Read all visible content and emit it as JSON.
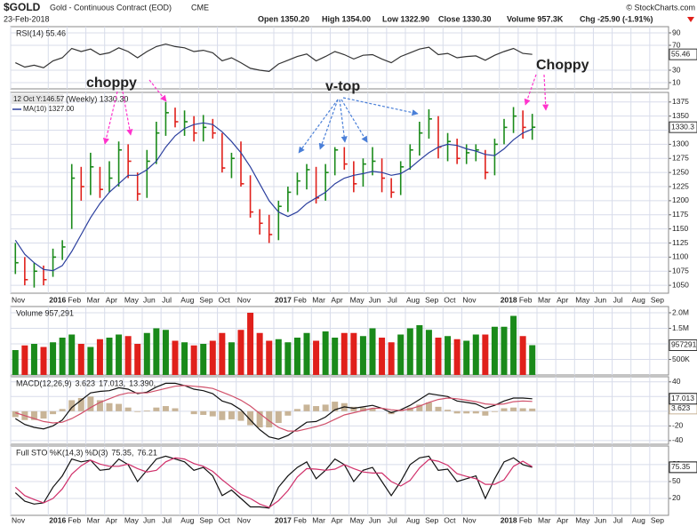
{
  "header": {
    "symbol": "$GOLD",
    "name": "Gold - Continuous Contract (EOD)",
    "exchange": "CME",
    "date": "23-Feb-2018",
    "source": "© StockCharts.com",
    "open": "Open 1350.20",
    "high": "High 1354.00",
    "low": "Low 1322.90",
    "close": "Close 1330.30",
    "volume": "Volume 957.3K",
    "change": "Chg -25.90 (-1.91%)"
  },
  "annotations": {
    "left": "choppy",
    "middle": "v-top",
    "right": "Choppy"
  },
  "chart_data": [
    {
      "type": "line",
      "title": "RSI(14) 55.46",
      "ylim": [
        0,
        100
      ],
      "yticks": [
        10,
        30,
        70,
        90
      ],
      "series": [
        {
          "color": "#333333",
          "last_label": "55.46",
          "values": [
            42,
            35,
            38,
            34,
            45,
            50,
            65,
            60,
            64,
            55,
            58,
            66,
            60,
            50,
            60,
            68,
            72,
            68,
            66,
            60,
            62,
            58,
            45,
            50,
            42,
            33,
            30,
            28,
            40,
            46,
            52,
            56,
            45,
            52,
            60,
            55,
            48,
            54,
            55,
            48,
            42,
            52,
            58,
            64,
            67,
            55,
            57,
            50,
            52,
            53,
            46,
            54,
            60,
            65,
            57,
            55.46,
            null,
            null,
            null,
            null,
            null,
            null,
            null,
            null,
            null,
            null,
            null,
            null,
            null,
            null
          ]
        }
      ]
    },
    {
      "type": "ohlc",
      "title": "(Weekly) 1330.30",
      "cursor_label": "12 Oct Y:146.57",
      "last_label": "1330.3",
      "up_color": "#1a8a1a",
      "down_color": "#e0201b",
      "ylim": [
        1036,
        1392
      ],
      "yticks": [
        1050,
        1075,
        1100,
        1125,
        1150,
        1175,
        1200,
        1225,
        1250,
        1275,
        1300,
        1325,
        1350,
        1375
      ],
      "categories": [
        "Nov",
        null,
        null,
        null,
        "2016",
        null,
        "Feb",
        null,
        "Mar",
        null,
        "Apr",
        null,
        "May",
        null,
        "Jun",
        null,
        "Jul",
        null,
        "Aug",
        null,
        "Sep",
        null,
        "Oct",
        null,
        "Nov",
        null,
        null,
        null,
        "2017",
        null,
        "Feb",
        null,
        "Mar",
        null,
        "Apr",
        null,
        "May",
        null,
        "Jun",
        null,
        "Jul",
        null,
        "Aug",
        null,
        "Sep",
        null,
        "Oct",
        null,
        "Nov",
        null,
        null,
        null,
        "2018",
        null,
        "Feb",
        null,
        "Mar",
        null,
        "Apr",
        null,
        "May",
        null,
        "Jun",
        null,
        "Jul",
        null,
        "Aug",
        null,
        "Sep",
        null
      ],
      "high": [
        1125,
        1100,
        1090,
        1085,
        1115,
        1130,
        1265,
        1260,
        1285,
        1260,
        1270,
        1305,
        1300,
        1250,
        1290,
        1340,
        1375,
        1365,
        1360,
        1350,
        1352,
        1345,
        1320,
        1285,
        1305,
        1245,
        1185,
        1175,
        1200,
        1225,
        1250,
        1265,
        1260,
        1265,
        1295,
        1295,
        1270,
        1275,
        1295,
        1275,
        1240,
        1270,
        1300,
        1340,
        1362,
        1350,
        1320,
        1310,
        1300,
        1300,
        1290,
        1310,
        1345,
        1366,
        1360,
        1354,
        null,
        null,
        null,
        null,
        null,
        null,
        null,
        null,
        null,
        null,
        null,
        null,
        null,
        null
      ],
      "low": [
        1070,
        1050,
        1046,
        1050,
        1065,
        1095,
        1150,
        1200,
        1210,
        1205,
        1215,
        1225,
        1240,
        1200,
        1205,
        1265,
        1315,
        1330,
        1315,
        1305,
        1305,
        1310,
        1250,
        1240,
        1225,
        1170,
        1140,
        1125,
        1130,
        1180,
        1210,
        1220,
        1195,
        1200,
        1245,
        1255,
        1215,
        1225,
        1245,
        1215,
        1205,
        1210,
        1255,
        1280,
        1310,
        1275,
        1270,
        1265,
        1265,
        1270,
        1238,
        1245,
        1300,
        1320,
        1310,
        1308,
        null,
        null,
        null,
        null,
        null,
        null,
        null,
        null,
        null,
        null,
        null,
        null,
        null,
        null
      ],
      "close": [
        1090,
        1060,
        1075,
        1060,
        1100,
        1118,
        1240,
        1225,
        1260,
        1220,
        1240,
        1290,
        1270,
        1212,
        1270,
        1320,
        1356,
        1340,
        1340,
        1320,
        1330,
        1320,
        1258,
        1275,
        1230,
        1180,
        1160,
        1140,
        1190,
        1215,
        1235,
        1255,
        1205,
        1250,
        1290,
        1265,
        1230,
        1265,
        1270,
        1240,
        1215,
        1260,
        1290,
        1320,
        1345,
        1295,
        1305,
        1275,
        1285,
        1290,
        1250,
        1300,
        1330,
        1350,
        1330,
        1330.3,
        null,
        null,
        null,
        null,
        null,
        null,
        null,
        null,
        null,
        null,
        null,
        null,
        null,
        null
      ],
      "series": [
        {
          "name": "MA(10) 1327.00",
          "color": "#2b3f9e",
          "values": [
            1130,
            1105,
            1090,
            1078,
            1076,
            1085,
            1110,
            1140,
            1170,
            1195,
            1215,
            1230,
            1245,
            1245,
            1255,
            1270,
            1295,
            1315,
            1328,
            1335,
            1338,
            1335,
            1322,
            1305,
            1285,
            1260,
            1230,
            1200,
            1180,
            1172,
            1180,
            1195,
            1205,
            1215,
            1230,
            1240,
            1245,
            1248,
            1252,
            1250,
            1245,
            1248,
            1258,
            1272,
            1285,
            1295,
            1300,
            1298,
            1292,
            1288,
            1282,
            1280,
            1292,
            1308,
            1320,
            1327,
            null,
            null,
            null,
            null,
            null,
            null,
            null,
            null,
            null,
            null,
            null,
            null,
            null,
            null
          ]
        }
      ]
    },
    {
      "type": "bar",
      "title": "Volume 957,291",
      "last_label": "957291",
      "ylim": [
        0,
        2200000
      ],
      "yticks": [
        {
          "value": 500000,
          "label": "500K"
        },
        {
          "value": 1000000,
          "label": "1.0M"
        },
        {
          "value": 1500000,
          "label": "1.5M"
        },
        {
          "value": 2000000,
          "label": "2.0M"
        }
      ],
      "values": [
        800000,
        950000,
        1000000,
        900000,
        1050000,
        1200000,
        1300000,
        1000000,
        900000,
        1150000,
        1200000,
        1300000,
        1250000,
        1000000,
        1350000,
        1500000,
        1450000,
        1100000,
        1050000,
        950000,
        1000000,
        1100000,
        1350000,
        1050000,
        1450000,
        2000000,
        1350000,
        1100000,
        1150000,
        1050000,
        1200000,
        1350000,
        1100000,
        1400000,
        1200000,
        1350000,
        1350000,
        1250000,
        1500000,
        1200000,
        1050000,
        1300000,
        1500000,
        1600000,
        1450000,
        1200000,
        1250000,
        1150000,
        1100000,
        1300000,
        1300000,
        1550000,
        1550000,
        1900000,
        1250000,
        957291,
        null,
        null,
        null,
        null,
        null,
        null,
        null,
        null,
        null,
        null,
        null,
        null,
        null,
        null
      ]
    },
    {
      "type": "line",
      "title": "MACD(12,26,9)",
      "ylim": [
        -45,
        47
      ],
      "yticks": [
        -40,
        -20,
        0,
        20,
        40
      ],
      "series": [
        {
          "name": "3.623",
          "color": "#c8b497",
          "style": "histogram",
          "last_label": "3.623",
          "values": [
            -8,
            -12,
            -12,
            -10,
            -4,
            3,
            15,
            18,
            20,
            15,
            11,
            10,
            5,
            -1,
            1,
            5,
            7,
            4,
            0,
            -4,
            -5,
            -7,
            -12,
            -11,
            -13,
            -19,
            -22,
            -22,
            -16,
            -6,
            3,
            9,
            7,
            9,
            13,
            11,
            6,
            5,
            4,
            0,
            -4,
            1,
            5,
            9,
            12,
            6,
            2,
            -3,
            -3,
            -3,
            -6,
            -1,
            4,
            5,
            4,
            3.623,
            null,
            null,
            null,
            null,
            null,
            null,
            null,
            null,
            null,
            null,
            null,
            null,
            null,
            null
          ]
        },
        {
          "name": "17.013,",
          "color": "#111111",
          "last_label": "17.013",
          "values": [
            -10,
            -18,
            -22,
            -24,
            -20,
            -12,
            5,
            15,
            25,
            27,
            28,
            32,
            30,
            24,
            26,
            33,
            38,
            38,
            35,
            30,
            28,
            24,
            14,
            10,
            2,
            -12,
            -25,
            -35,
            -38,
            -33,
            -24,
            -15,
            -14,
            -8,
            2,
            6,
            4,
            6,
            8,
            4,
            -2,
            2,
            8,
            16,
            24,
            22,
            20,
            14,
            12,
            10,
            4,
            8,
            14,
            18,
            18,
            17.013,
            null,
            null,
            null,
            null,
            null,
            null,
            null,
            null,
            null,
            null,
            null,
            null,
            null,
            null
          ]
        },
        {
          "name": "13.390,",
          "color": "#d0506a",
          "values": [
            -2,
            -6,
            -10,
            -14,
            -16,
            -15,
            -10,
            -3,
            5,
            12,
            17,
            22,
            25,
            25,
            25,
            28,
            31,
            34,
            35,
            34,
            33,
            31,
            26,
            21,
            15,
            7,
            -3,
            -13,
            -22,
            -27,
            -27,
            -24,
            -21,
            -17,
            -11,
            -5,
            -2,
            1,
            4,
            4,
            2,
            1,
            3,
            7,
            12,
            16,
            18,
            17,
            15,
            13,
            10,
            9,
            10,
            13,
            14,
            13.39,
            null,
            null,
            null,
            null,
            null,
            null,
            null,
            null,
            null,
            null,
            null,
            null,
            null,
            null
          ]
        }
      ]
    },
    {
      "type": "line",
      "title": "Full STO %K(14,3) %D(3)",
      "ylim": [
        -10,
        113
      ],
      "yticks": [
        20,
        50,
        80
      ],
      "series": [
        {
          "name": "75.35,",
          "color": "#111111",
          "last_label": "75.35",
          "values": [
            30,
            15,
            10,
            12,
            40,
            60,
            90,
            85,
            88,
            70,
            72,
            90,
            80,
            50,
            70,
            90,
            95,
            90,
            85,
            70,
            75,
            60,
            25,
            35,
            20,
            5,
            5,
            3,
            40,
            60,
            75,
            85,
            55,
            70,
            90,
            80,
            50,
            70,
            75,
            50,
            25,
            50,
            80,
            92,
            95,
            70,
            72,
            50,
            55,
            60,
            20,
            55,
            85,
            92,
            80,
            75.35,
            null,
            null,
            null,
            null,
            null,
            null,
            null,
            null,
            null,
            null,
            null,
            null,
            null,
            null
          ]
        },
        {
          "name": "76.21",
          "color": "#d0306a",
          "values": [
            40,
            25,
            18,
            12,
            20,
            37,
            63,
            78,
            88,
            81,
            77,
            77,
            81,
            73,
            67,
            70,
            85,
            92,
            90,
            82,
            77,
            68,
            53,
            40,
            27,
            20,
            10,
            4,
            16,
            34,
            58,
            73,
            72,
            70,
            72,
            80,
            73,
            67,
            65,
            65,
            50,
            42,
            52,
            74,
            89,
            86,
            79,
            64,
            59,
            55,
            45,
            45,
            53,
            77,
            86,
            76.21,
            null,
            null,
            null,
            null,
            null,
            null,
            null,
            null,
            null,
            null,
            null,
            null,
            null,
            null
          ]
        }
      ]
    }
  ]
}
